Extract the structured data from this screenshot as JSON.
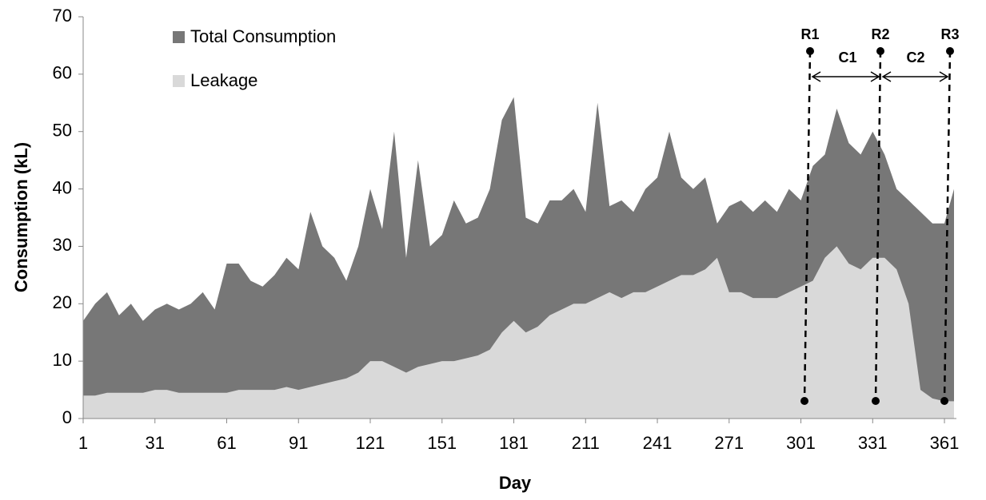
{
  "chart_data": {
    "type": "area",
    "xlabel": "Day",
    "ylabel": "Consumption (kL)",
    "x": [
      1,
      6,
      11,
      16,
      21,
      26,
      31,
      36,
      41,
      46,
      51,
      56,
      61,
      66,
      71,
      76,
      81,
      86,
      91,
      96,
      101,
      106,
      111,
      116,
      121,
      126,
      131,
      136,
      141,
      146,
      151,
      156,
      161,
      166,
      171,
      176,
      181,
      186,
      191,
      196,
      201,
      206,
      211,
      216,
      221,
      226,
      231,
      236,
      241,
      246,
      251,
      256,
      261,
      266,
      271,
      276,
      281,
      286,
      291,
      296,
      301,
      306,
      311,
      316,
      321,
      326,
      331,
      336,
      341,
      346,
      351,
      356,
      361,
      365
    ],
    "series": [
      {
        "name": "Total Consumption",
        "color": "#777777",
        "values": [
          17,
          20,
          22,
          18,
          20,
          17,
          19,
          20,
          19,
          20,
          22,
          19,
          27,
          27,
          24,
          23,
          25,
          28,
          26,
          36,
          30,
          28,
          24,
          30,
          40,
          33,
          50,
          28,
          45,
          30,
          32,
          38,
          34,
          35,
          40,
          52,
          56,
          35,
          34,
          38,
          38,
          40,
          36,
          55,
          37,
          38,
          36,
          40,
          42,
          50,
          42,
          40,
          42,
          34,
          37,
          38,
          36,
          38,
          36,
          40,
          38,
          44,
          46,
          54,
          48,
          46,
          50,
          46,
          40,
          38,
          36,
          34,
          34,
          40
        ]
      },
      {
        "name": "Leakage",
        "color": "#d9d9d9",
        "values": [
          4,
          4,
          4.5,
          4.5,
          4.5,
          4.5,
          5,
          5,
          4.5,
          4.5,
          4.5,
          4.5,
          4.5,
          5,
          5,
          5,
          5,
          5.5,
          5,
          5.5,
          6,
          6.5,
          7,
          8,
          10,
          10,
          9,
          8,
          9,
          9.5,
          10,
          10,
          10.5,
          11,
          12,
          15,
          17,
          15,
          16,
          18,
          19,
          20,
          20,
          21,
          22,
          21,
          22,
          22,
          23,
          24,
          25,
          25,
          26,
          28,
          22,
          22,
          21,
          21,
          21,
          22,
          23,
          24,
          28,
          30,
          27,
          26,
          28,
          28,
          26,
          20,
          5,
          3.5,
          3,
          3
        ]
      }
    ],
    "xlim": [
      1,
      366
    ],
    "xticks": [
      1,
      31,
      61,
      91,
      121,
      151,
      181,
      211,
      241,
      271,
      301,
      331,
      361
    ],
    "ylim": [
      0,
      70
    ],
    "yticks": [
      0,
      10,
      20,
      30,
      40,
      50,
      60,
      70
    ],
    "legend": "upper left",
    "annotations": [
      "R1",
      "R2",
      "R3",
      "C1",
      "C2"
    ]
  }
}
